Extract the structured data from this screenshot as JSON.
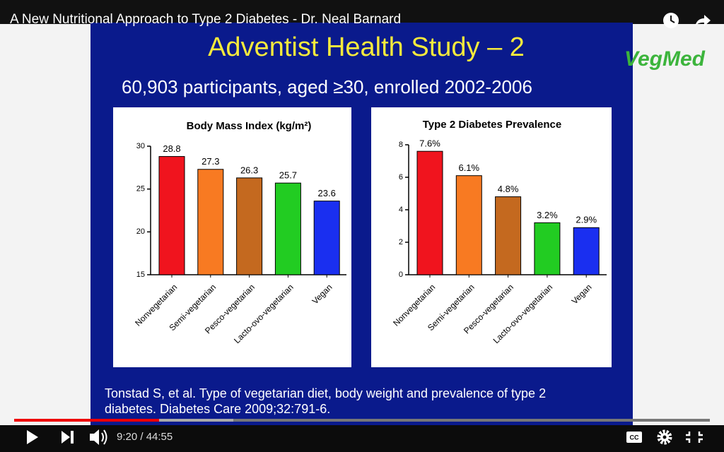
{
  "video": {
    "title": "A New Nutritional Approach to Type 2 Diabetes - Dr. Neal Barnard",
    "time": "9:20 / 44:55"
  },
  "slide": {
    "title": "Adventist Health Study – 2",
    "subtitle": "60,903 participants, aged ≥30, enrolled 2002-2006",
    "logo": "VegMed",
    "citation": [
      "Tonstad S, et al. Type of vegetarian diet, body weight and prevalence of type 2",
      "diabetes. Diabetes Care 2009;32:791-6."
    ]
  },
  "chart_data": [
    {
      "type": "bar",
      "title": "Body Mass Index (kg/m²)",
      "categories": [
        "Nonvegetarian",
        "Semi-vegetarian",
        "Pesco-vegetarian",
        "Lacto-ovo-vegetarian",
        "Vegan"
      ],
      "values": [
        28.8,
        27.3,
        26.3,
        25.7,
        23.6
      ],
      "colors": [
        "#f0141e",
        "#f87a22",
        "#c4691f",
        "#22cc22",
        "#1a2ff0"
      ],
      "ylim": [
        15,
        30
      ],
      "yticks": [
        15,
        20,
        25,
        30
      ],
      "grid": false
    },
    {
      "type": "bar",
      "title": "Type 2 Diabetes Prevalence",
      "categories": [
        "Nonvegetarian",
        "Semi-vegetarian",
        "Pesco-vegetarian",
        "Lacto-ovo-vegetarian",
        "Vegan"
      ],
      "values": [
        7.6,
        6.1,
        4.8,
        3.2,
        2.9
      ],
      "value_labels": [
        "7.6%",
        "6.1%",
        "4.8%",
        "3.2%",
        "2.9%"
      ],
      "colors": [
        "#f0141e",
        "#f87a22",
        "#c4691f",
        "#22cc22",
        "#1a2ff0"
      ],
      "ylim": [
        0,
        8
      ],
      "yticks": [
        0,
        2,
        4,
        6,
        8
      ],
      "grid": false
    }
  ]
}
